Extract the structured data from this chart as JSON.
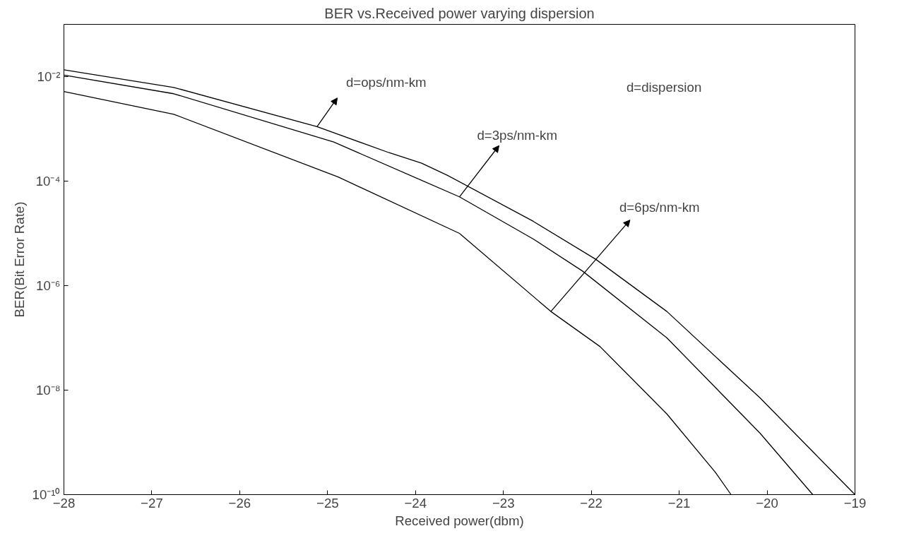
{
  "chart_data": {
    "type": "line",
    "title": "BER vs.Received power varying dispersion",
    "xlabel": "Received power(dbm)",
    "ylabel": "BER(Bit Error Rate)",
    "log": "y",
    "xlim": [
      -28,
      -19
    ],
    "ylim": [
      1e-10,
      0.1
    ],
    "xticks": [
      -28,
      -27,
      -26,
      -25,
      -24,
      -23,
      -22,
      -21,
      -20,
      -19
    ],
    "yticks": [
      {
        "value": 1e-10,
        "label": "10⁻¹⁰"
      },
      {
        "value": 1e-08,
        "label": "10⁻⁸"
      },
      {
        "value": 1e-06,
        "label": "10⁻⁶"
      },
      {
        "value": 0.0001,
        "label": "10⁻⁴"
      },
      {
        "value": 0.01,
        "label": "10⁻²"
      }
    ],
    "line_style": "solid",
    "series": [
      {
        "color": "#000000",
        "x": [
          -28,
          -26.75,
          -25.12,
          -24.3,
          -23.93,
          -23.64,
          -22.66,
          -21.95,
          -21.14,
          -20.08,
          -19
        ],
        "values": [
          0.0135,
          0.0062,
          0.0011,
          0.00035,
          0.00022,
          0.00013,
          1.7e-05,
          3.2e-06,
          3.2e-07,
          7.1e-09,
          1e-10
        ]
      },
      {
        "color": "#000000",
        "x": [
          -28,
          -26.75,
          -24.93,
          -23.5,
          -22.66,
          -22.1,
          -21.14,
          -20.08,
          -19.48
        ],
        "values": [
          0.0107,
          0.0047,
          0.00056,
          5e-05,
          7.8e-06,
          1.9e-06,
          1e-07,
          1.5e-09,
          1e-10
        ]
      },
      {
        "color": "#000000",
        "x": [
          -28,
          -26.75,
          -24.88,
          -23.5,
          -22.46,
          -21.9,
          -21.14,
          -20.59,
          -20.41
        ],
        "values": [
          0.0052,
          0.0019,
          0.00012,
          1e-05,
          3.2e-07,
          6.8e-08,
          3.5e-09,
          2.7e-10,
          1e-10
        ]
      }
    ],
    "annotations": [
      {
        "text": "d=ops/nm-km",
        "x": -25.12,
        "y": 0.0011
      },
      {
        "text": "d=3ps/nm-km",
        "x": -23.5,
        "y": 5e-05
      },
      {
        "text": "d=6ps/nm-km",
        "x": -22.46,
        "y": 3.2e-07
      },
      "d=dispersion"
    ]
  }
}
